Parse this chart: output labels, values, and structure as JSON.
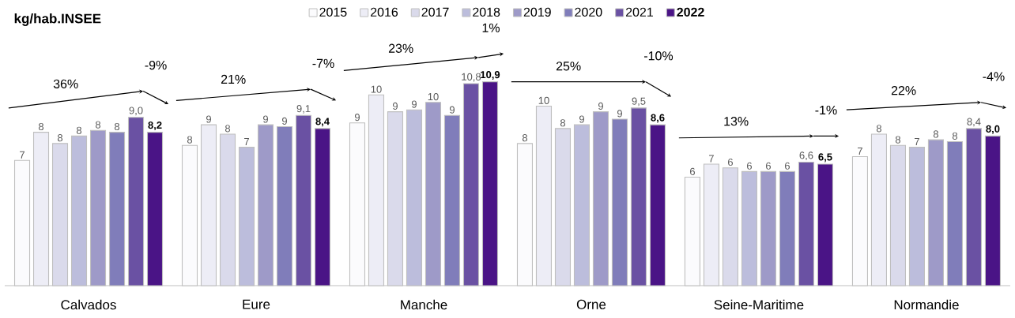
{
  "chart_data": {
    "type": "bar",
    "title": "kg/hab.INSEE",
    "categories": [
      "Calvados",
      "Eure",
      "Manche",
      "Orne",
      "Seine-Maritime",
      "Normandie"
    ],
    "series": [
      {
        "name": "2015",
        "color": "#fbfbfd",
        "values": [
          6.7,
          7.5,
          8.7,
          7.6,
          5.8,
          6.9
        ],
        "value_labels": [
          "7",
          "8",
          "9",
          "8",
          "6",
          "7"
        ]
      },
      {
        "name": "2016",
        "color": "#ededf6",
        "values": [
          8.2,
          8.6,
          10.2,
          9.6,
          6.5,
          8.1
        ],
        "value_labels": [
          "8",
          "9",
          "10",
          "10",
          "7",
          "8"
        ]
      },
      {
        "name": "2017",
        "color": "#dadaeb",
        "values": [
          7.6,
          8.1,
          9.3,
          8.4,
          6.3,
          7.5
        ],
        "value_labels": [
          "8",
          "8",
          "9",
          "8",
          "6",
          "8"
        ]
      },
      {
        "name": "2018",
        "color": "#bcbddc",
        "values": [
          8.0,
          7.4,
          9.4,
          8.6,
          6.1,
          7.4
        ],
        "value_labels": [
          "8",
          "7",
          "9",
          "9",
          "6",
          "7"
        ]
      },
      {
        "name": "2019",
        "color": "#9e9ac8",
        "values": [
          8.3,
          8.6,
          9.8,
          9.3,
          6.1,
          7.8
        ],
        "value_labels": [
          "8",
          "9",
          "10",
          "9",
          "6",
          "8"
        ]
      },
      {
        "name": "2020",
        "color": "#807dba",
        "values": [
          8.2,
          8.5,
          9.1,
          8.9,
          6.1,
          7.7
        ],
        "value_labels": [
          "8",
          "9",
          "9",
          "9",
          "6",
          "8"
        ]
      },
      {
        "name": "2021",
        "color": "#6a51a3",
        "values": [
          9.0,
          9.1,
          10.8,
          9.5,
          6.6,
          8.4
        ],
        "value_labels": [
          "9,0",
          "9,1",
          "10,8",
          "9,5",
          "6,6",
          "8,4"
        ]
      },
      {
        "name": "2022",
        "color": "#4a1486",
        "values": [
          8.2,
          8.4,
          10.9,
          8.6,
          6.5,
          8.0
        ],
        "value_labels": [
          "8,2",
          "8,4",
          "10,9",
          "8,6",
          "6,5",
          "8,0"
        ]
      }
    ],
    "annotations": [
      "36%",
      "-9%",
      "21%",
      "-7%",
      "23%",
      "1%",
      "25%",
      "-10%",
      "13%",
      "-1%",
      "22%",
      "-4%"
    ],
    "legend": "top",
    "grid": false
  }
}
